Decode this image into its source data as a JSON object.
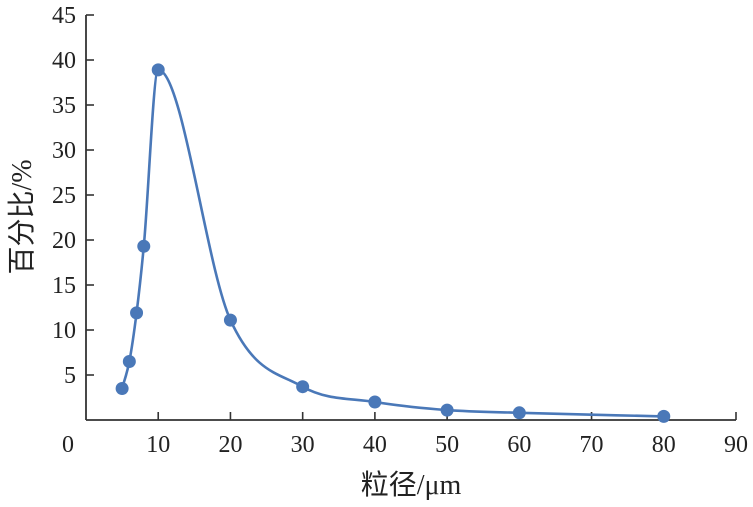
{
  "chart_data": {
    "type": "line",
    "xlabel": "粒径/μm",
    "ylabel": "百分比/%",
    "xlim": [
      0,
      90
    ],
    "ylim": [
      0,
      45
    ],
    "x_ticks": [
      0,
      10,
      20,
      30,
      40,
      50,
      60,
      70,
      80,
      90
    ],
    "y_ticks": [
      5,
      10,
      15,
      20,
      25,
      30,
      35,
      40,
      45
    ],
    "y_tick_labels": [
      "5",
      "10",
      "15",
      "20",
      "25",
      "30",
      "35",
      "40",
      "45"
    ],
    "x_tick_labels": [
      "0",
      "10",
      "20",
      "30",
      "40",
      "50",
      "60",
      "70",
      "80",
      "90"
    ],
    "grid": false,
    "curve": "smooth",
    "series": [
      {
        "color": "#4a78b8",
        "x": [
          5,
          6,
          7,
          8,
          10,
          20,
          30,
          40,
          50,
          60,
          80
        ],
        "y": [
          3.5,
          6.5,
          11.9,
          19.3,
          38.9,
          11.1,
          3.7,
          2.0,
          1.1,
          0.8,
          0.4
        ]
      }
    ]
  }
}
